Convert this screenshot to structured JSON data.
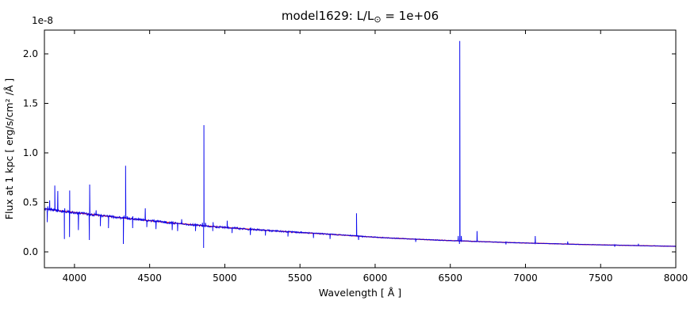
{
  "chart_data": {
    "type": "line",
    "title": "model1629: L/L⊙ = 1e+06",
    "title_parts": {
      "prefix": "model1629: L/L",
      "sub": "⊙",
      "suffix": " = 1e+06"
    },
    "offset_text": "1e-8",
    "xlabel": "Wavelength [ Å ]",
    "ylabel": "Flux at 1 kpc [ erg/s/cm² /Å ]",
    "xlim": [
      3800,
      8000
    ],
    "ylim": [
      -0.16,
      2.24
    ],
    "xticks": [
      "4000",
      "4500",
      "5000",
      "5500",
      "6000",
      "6500",
      "7000",
      "7500",
      "8000"
    ],
    "yticks": [
      "0.0",
      "0.5",
      "1.0",
      "1.5",
      "2.0"
    ],
    "flux_unit_scale": "1e-8",
    "grid": false,
    "legend": "none",
    "frame_color": "#000000",
    "series": [
      {
        "name": "model-continuum",
        "color": "#ff0000",
        "source": "spectrum-continuum"
      },
      {
        "name": "spectrum",
        "color": "#0000ee",
        "continuum": [
          [
            3800,
            0.435
          ],
          [
            3900,
            0.415
          ],
          [
            4000,
            0.398
          ],
          [
            4100,
            0.38
          ],
          [
            4200,
            0.363
          ],
          [
            4300,
            0.346
          ],
          [
            4400,
            0.33
          ],
          [
            4500,
            0.315
          ],
          [
            4600,
            0.3
          ],
          [
            4700,
            0.286
          ],
          [
            4800,
            0.272
          ],
          [
            4900,
            0.259
          ],
          [
            5000,
            0.247
          ],
          [
            5100,
            0.236
          ],
          [
            5200,
            0.225
          ],
          [
            5300,
            0.215
          ],
          [
            5400,
            0.205
          ],
          [
            5500,
            0.196
          ],
          [
            5600,
            0.187
          ],
          [
            5700,
            0.178
          ],
          [
            5800,
            0.168
          ],
          [
            5900,
            0.158
          ],
          [
            6000,
            0.148
          ],
          [
            6100,
            0.14
          ],
          [
            6200,
            0.133
          ],
          [
            6300,
            0.126
          ],
          [
            6400,
            0.12
          ],
          [
            6500,
            0.114
          ],
          [
            6563,
            0.111
          ],
          [
            6700,
            0.104
          ],
          [
            6800,
            0.099
          ],
          [
            6900,
            0.094
          ],
          [
            7000,
            0.09
          ],
          [
            7100,
            0.086
          ],
          [
            7200,
            0.082
          ],
          [
            7300,
            0.078
          ],
          [
            7400,
            0.074
          ],
          [
            7500,
            0.071
          ],
          [
            7600,
            0.068
          ],
          [
            7700,
            0.065
          ],
          [
            7800,
            0.062
          ],
          [
            7900,
            0.059
          ],
          [
            8000,
            0.056
          ]
        ],
        "noise_amp": [
          [
            3800,
            0.014
          ],
          [
            4400,
            0.012
          ],
          [
            5000,
            0.01
          ],
          [
            5500,
            0.007
          ],
          [
            6000,
            0.0045
          ],
          [
            6500,
            0.0035
          ],
          [
            7000,
            0.003
          ],
          [
            8000,
            0.0025
          ]
        ],
        "emission_lines": [
          [
            3822,
            0.46
          ],
          [
            3835,
            0.52
          ],
          [
            3869,
            0.67
          ],
          [
            3889,
            0.615
          ],
          [
            3935,
            0.44
          ],
          [
            3968,
            0.62
          ],
          [
            4101,
            0.68
          ],
          [
            4144,
            0.42
          ],
          [
            4340,
            0.87,
            0.02
          ],
          [
            4388,
            0.36
          ],
          [
            4471,
            0.44
          ],
          [
            4713,
            0.33
          ],
          [
            4861,
            1.28,
            0.03
          ],
          [
            4922,
            0.3
          ],
          [
            5016,
            0.315
          ],
          [
            5876,
            0.39
          ],
          [
            6563,
            2.13,
            0.05
          ],
          [
            6678,
            0.21
          ],
          [
            7065,
            0.16
          ],
          [
            7281,
            0.105
          ],
          [
            7751,
            0.082
          ]
        ],
        "absorption_lines": [
          [
            3819,
            0.3
          ],
          [
            3933,
            0.13
          ],
          [
            3967,
            0.15
          ],
          [
            4026,
            0.22
          ],
          [
            4099,
            0.12
          ],
          [
            4172,
            0.26
          ],
          [
            4226,
            0.24
          ],
          [
            4325,
            0.08
          ],
          [
            4387,
            0.24
          ],
          [
            4481,
            0.25
          ],
          [
            4542,
            0.23
          ],
          [
            4650,
            0.22
          ],
          [
            4686,
            0.21
          ],
          [
            4805,
            0.21
          ],
          [
            4859,
            0.04
          ],
          [
            4920,
            0.21
          ],
          [
            5048,
            0.19
          ],
          [
            5170,
            0.17
          ],
          [
            5270,
            0.165
          ],
          [
            5420,
            0.155
          ],
          [
            5590,
            0.14
          ],
          [
            5700,
            0.13
          ],
          [
            5890,
            0.12
          ],
          [
            6270,
            0.1
          ],
          [
            6561,
            0.08
          ],
          [
            6870,
            0.075
          ],
          [
            7594,
            0.052
          ]
        ]
      }
    ]
  }
}
